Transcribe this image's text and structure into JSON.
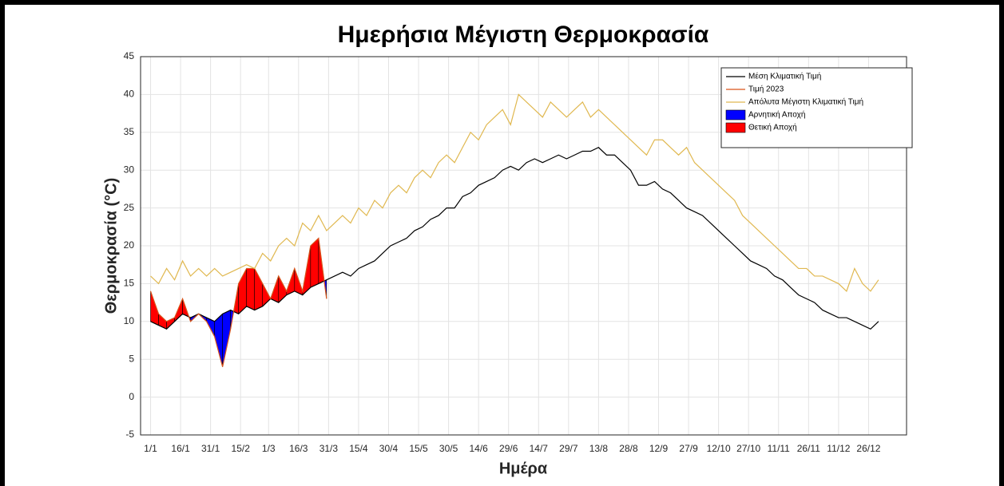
{
  "chart_data": {
    "type": "line",
    "title": "Ημερήσια Μέγιστη Θερμοκρασία",
    "xlabel": "Ημέρα",
    "ylabel": "Θερμοκρασία (°C)",
    "xlim": [
      -4,
      379
    ],
    "xticks": [
      {
        "value": 1,
        "label": "1/1"
      },
      {
        "value": 16,
        "label": "16/1"
      },
      {
        "value": 31,
        "label": "31/1"
      },
      {
        "value": 46,
        "label": "15/2"
      },
      {
        "value": 60,
        "label": "1/3"
      },
      {
        "value": 75,
        "label": "16/3"
      },
      {
        "value": 90,
        "label": "31/3"
      },
      {
        "value": 105,
        "label": "15/4"
      },
      {
        "value": 120,
        "label": "30/4"
      },
      {
        "value": 135,
        "label": "15/5"
      },
      {
        "value": 150,
        "label": "30/5"
      },
      {
        "value": 165,
        "label": "14/6"
      },
      {
        "value": 180,
        "label": "29/6"
      },
      {
        "value": 195,
        "label": "14/7"
      },
      {
        "value": 210,
        "label": "29/7"
      },
      {
        "value": 225,
        "label": "13/8"
      },
      {
        "value": 240,
        "label": "28/8"
      },
      {
        "value": 255,
        "label": "12/9"
      },
      {
        "value": 270,
        "label": "27/9"
      },
      {
        "value": 285,
        "label": "12/10"
      },
      {
        "value": 300,
        "label": "27/10"
      },
      {
        "value": 315,
        "label": "11/11"
      },
      {
        "value": 330,
        "label": "26/11"
      },
      {
        "value": 345,
        "label": "11/12"
      },
      {
        "value": 360,
        "label": "26/12"
      }
    ],
    "ylim": [
      -5,
      45
    ],
    "yticks": [
      -5,
      0,
      5,
      10,
      15,
      20,
      25,
      30,
      35,
      40,
      45
    ],
    "grid": true,
    "legend": "upper right",
    "x": [
      1,
      5,
      9,
      13,
      17,
      21,
      25,
      29,
      33,
      37,
      41,
      45,
      49,
      53,
      57,
      61,
      65,
      69,
      73,
      77,
      81,
      85,
      89,
      93,
      97,
      101,
      105,
      109,
      113,
      117,
      121,
      125,
      129,
      133,
      137,
      141,
      145,
      149,
      153,
      157,
      161,
      165,
      169,
      173,
      177,
      181,
      185,
      189,
      193,
      197,
      201,
      205,
      209,
      213,
      217,
      221,
      225,
      229,
      233,
      237,
      241,
      245,
      249,
      253,
      257,
      261,
      265,
      269,
      273,
      277,
      281,
      285,
      289,
      293,
      297,
      301,
      305,
      309,
      313,
      317,
      321,
      325,
      329,
      333,
      337,
      341,
      345,
      349,
      353,
      357,
      361,
      365
    ],
    "series": [
      {
        "name": "Μέση Κλιματική Τιμή",
        "color": "#000000",
        "values": [
          10,
          9.5,
          9,
          10,
          11,
          10.5,
          11,
          10.5,
          10,
          11,
          11.5,
          11,
          12,
          11.5,
          12,
          13,
          12.5,
          13.5,
          14,
          13.5,
          14.5,
          15,
          15.5,
          16,
          16.5,
          16,
          17,
          17.5,
          18,
          19,
          20,
          20.5,
          21,
          22,
          22.5,
          23.5,
          24,
          25,
          25,
          26.5,
          27,
          28,
          28.5,
          29,
          30,
          30.5,
          30,
          31,
          31.5,
          31,
          31.5,
          32,
          31.5,
          32,
          32.5,
          32.5,
          33,
          32,
          32,
          31,
          30,
          28,
          28,
          28.5,
          27.5,
          27,
          26,
          25,
          24.5,
          24,
          23,
          22,
          21,
          20,
          19,
          18,
          17.5,
          17,
          16,
          15.5,
          14.5,
          13.5,
          13,
          12.5,
          11.5,
          11,
          10.5,
          10.5,
          10,
          9.5,
          9,
          10
        ]
      },
      {
        "name": "Τιμή 2023",
        "color": "#d95319",
        "values": [
          14,
          11,
          10,
          10.5,
          13,
          10,
          11,
          10,
          8,
          4,
          9,
          15,
          17,
          17,
          15,
          13,
          16,
          14,
          17,
          14,
          20,
          21,
          13,
          null,
          null,
          null,
          null,
          null,
          null,
          null,
          null,
          null,
          null,
          null,
          null,
          null,
          null,
          null,
          null,
          null,
          null,
          null,
          null,
          null,
          null,
          null,
          null,
          null,
          null,
          null,
          null,
          null,
          null,
          null,
          null,
          null,
          null,
          null,
          null,
          null,
          null,
          null,
          null,
          null,
          null,
          null,
          null,
          null,
          null,
          null,
          null,
          null,
          null,
          null,
          null,
          null,
          null,
          null,
          null,
          null,
          null,
          null,
          null,
          null,
          null,
          null,
          null,
          null,
          null,
          null,
          null,
          null
        ]
      },
      {
        "name": "Απόλυτα Μέγιστη Κλιματική Τιμή",
        "color": "#e0b850",
        "values": [
          16,
          15,
          17,
          15.5,
          18,
          16,
          17,
          16,
          17,
          16,
          16.5,
          17,
          17.5,
          17,
          19,
          18,
          20,
          21,
          20,
          23,
          22,
          24,
          22,
          23,
          24,
          23,
          25,
          24,
          26,
          25,
          27,
          28,
          27,
          29,
          30,
          29,
          31,
          32,
          31,
          33,
          35,
          34,
          36,
          37,
          38,
          36,
          40,
          39,
          38,
          37,
          39,
          38,
          37,
          38,
          39,
          37,
          38,
          37,
          36,
          35,
          34,
          33,
          32,
          34,
          34,
          33,
          32,
          33,
          31,
          30,
          29,
          28,
          27,
          26,
          24,
          23,
          22,
          21,
          20,
          19,
          18,
          17,
          17,
          16,
          16,
          15.5,
          15,
          14,
          17,
          15,
          14,
          15.5
        ]
      }
    ],
    "fills": [
      {
        "name": "Αρνητική Αποχή",
        "color": "#0000ff"
      },
      {
        "name": "Θετική Αποχή",
        "color": "#ff0000"
      }
    ]
  }
}
